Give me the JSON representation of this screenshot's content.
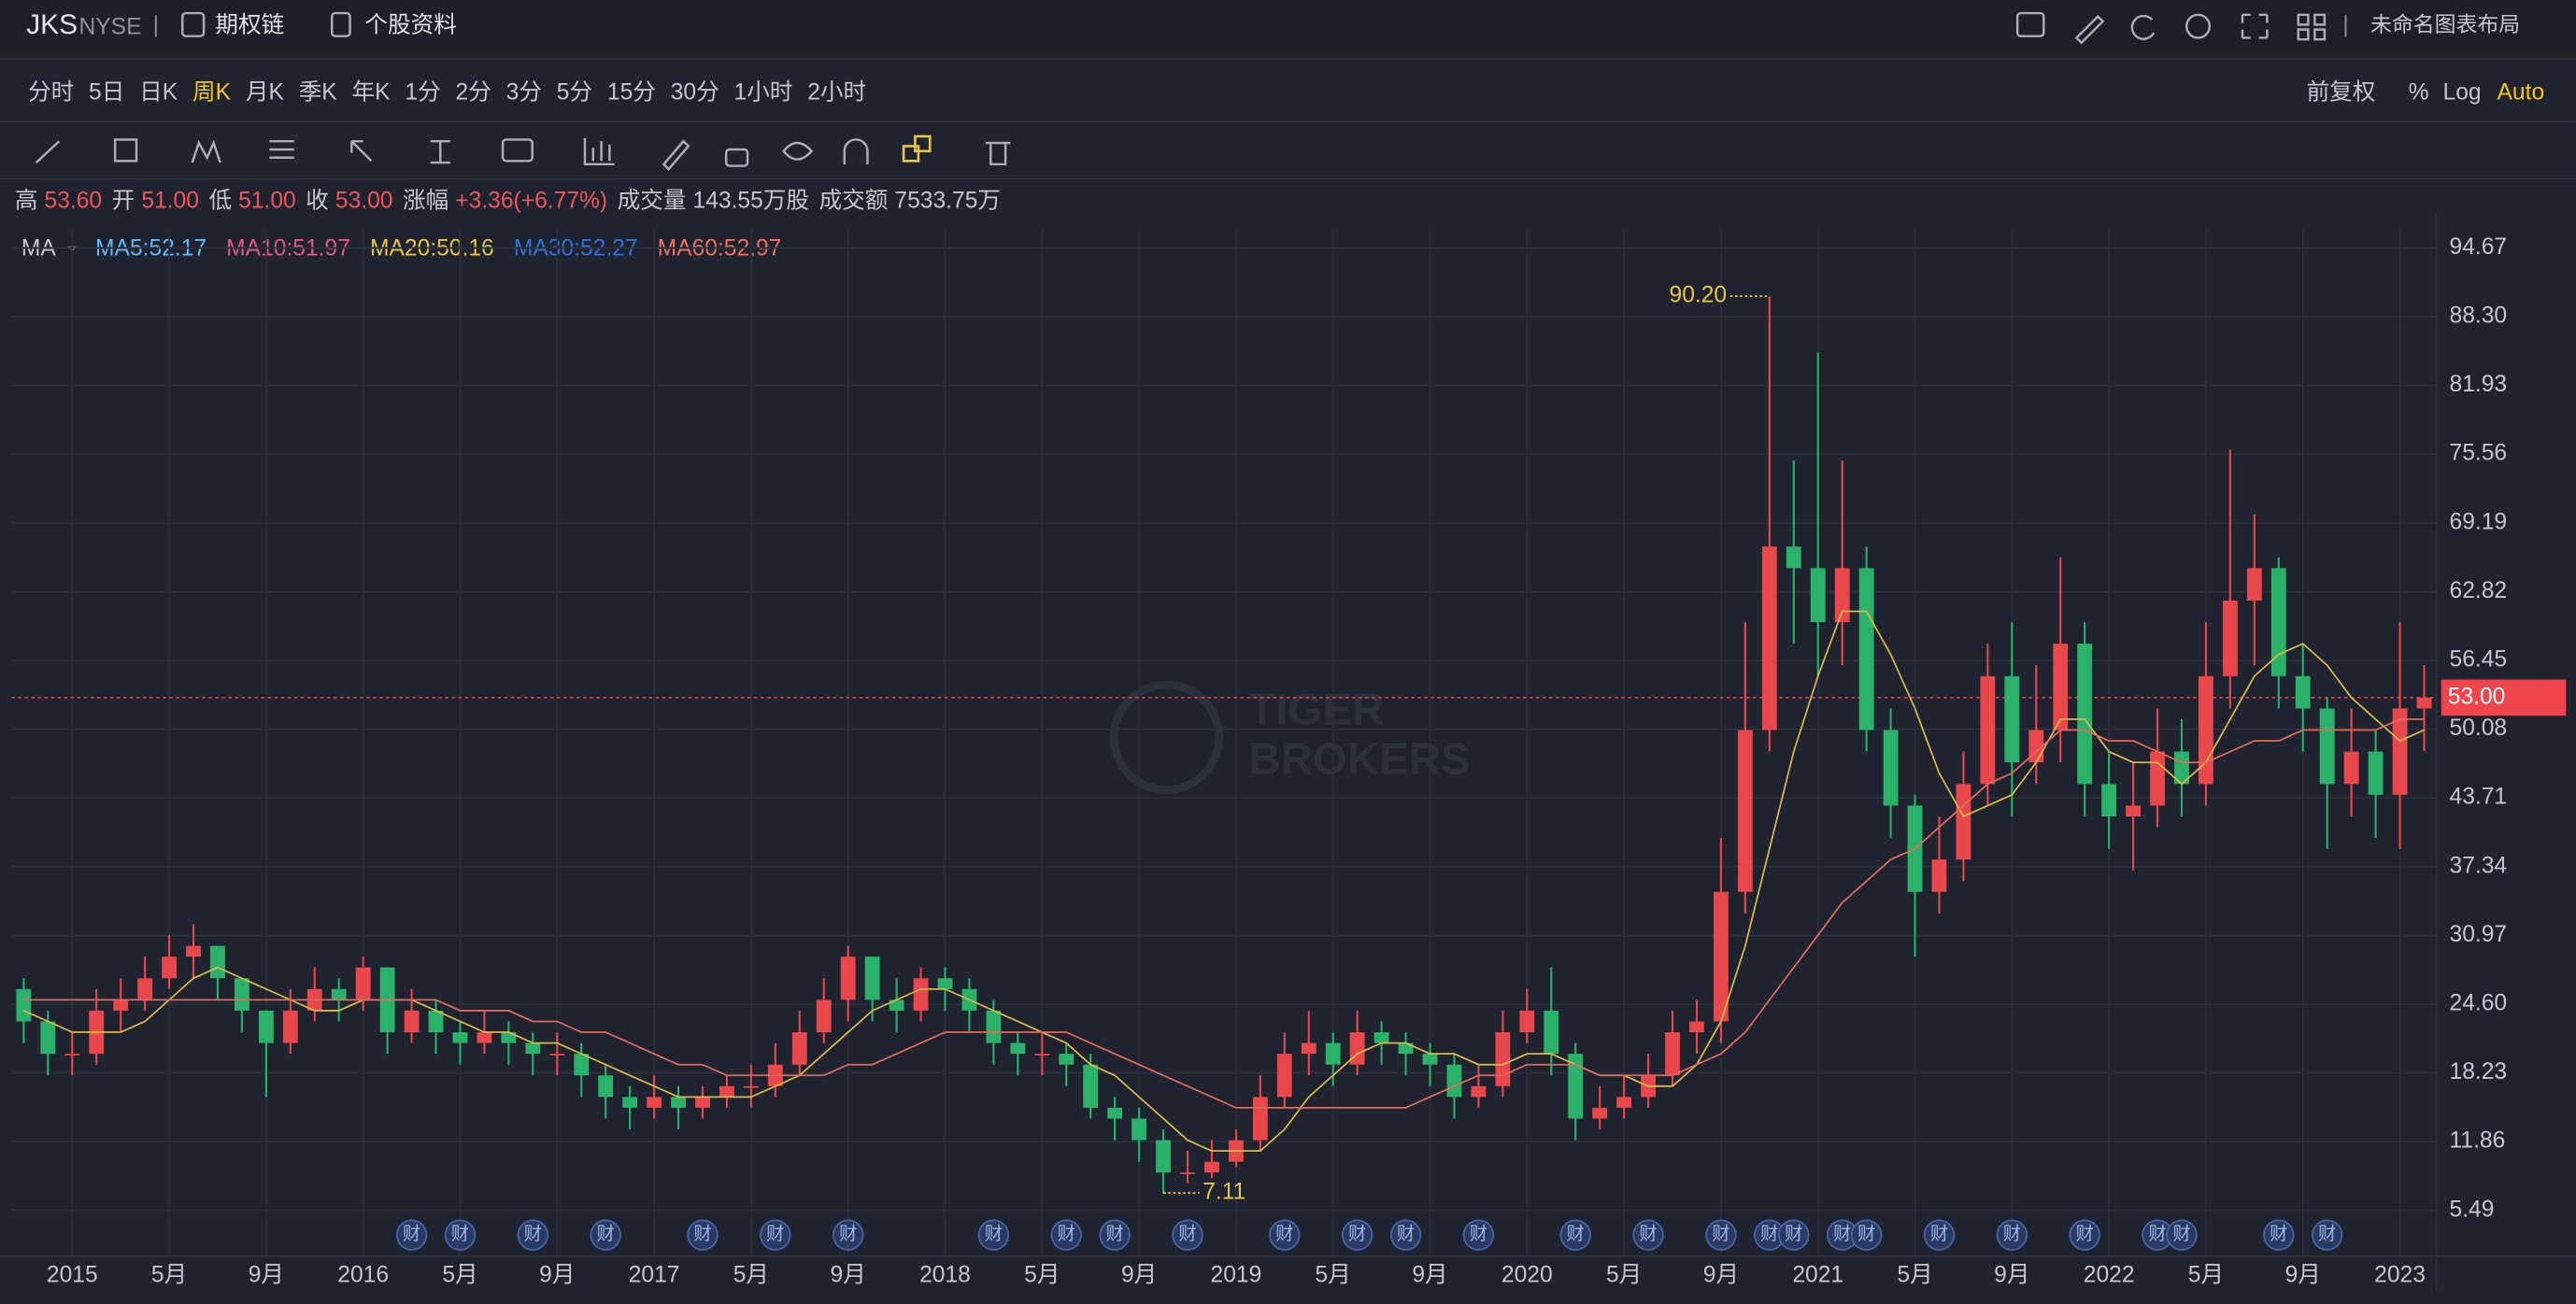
{
  "header": {
    "symbol": "JKS",
    "exchange": "NYSE",
    "links": [
      "期权链",
      "个股资料"
    ],
    "layout_name": "未命名图表布局"
  },
  "periods": [
    "分时",
    "5日",
    "日K",
    "周K",
    "月K",
    "季K",
    "年K",
    "1分",
    "2分",
    "3分",
    "5分",
    "15分",
    "30分",
    "1小时",
    "2小时"
  ],
  "active_period": 3,
  "adjust": [
    "前复权",
    "%",
    "Log",
    "Auto"
  ],
  "quote": [
    {
      "label": "高",
      "value": "53.60"
    },
    {
      "label": "开",
      "value": "51.00"
    },
    {
      "label": "低",
      "value": "51.00"
    },
    {
      "label": "收",
      "value": "53.00"
    },
    {
      "label": "涨幅",
      "value": "+3.36(+6.77%)"
    },
    {
      "label": "成交量",
      "value": "143.55万股"
    },
    {
      "label": "成交额",
      "value": "7533.75万"
    }
  ],
  "chart_data": {
    "type": "candlestick",
    "indicator": "MA",
    "legend": [
      {
        "text": "MA5:52.17",
        "color": "#62b8f2"
      },
      {
        "text": "MA10:51.97",
        "color": "#e2558f"
      },
      {
        "text": "MA20:50.16",
        "color": "#e8c547"
      },
      {
        "text": "MA30:52.27",
        "color": "#2f70dc"
      },
      {
        "text": "MA60:52.97",
        "color": "#f0705f"
      }
    ],
    "up_color": "#e8474c",
    "down_color": "#2bb26a",
    "x": [
      "2014-11",
      "2014-12",
      "2015-01",
      "2015-02",
      "2015-03",
      "2015-04",
      "2015-05",
      "2015-06",
      "2015-07",
      "2015-08",
      "2015-09",
      "2015-10",
      "2015-11",
      "2015-12",
      "2016-01",
      "2016-02",
      "2016-03",
      "2016-04",
      "2016-05",
      "2016-06",
      "2016-07",
      "2016-08",
      "2016-09",
      "2016-10",
      "2016-11",
      "2016-12",
      "2017-01",
      "2017-02",
      "2017-03",
      "2017-04",
      "2017-05",
      "2017-06",
      "2017-07",
      "2017-08",
      "2017-09",
      "2017-10",
      "2017-11",
      "2017-12",
      "2018-01",
      "2018-02",
      "2018-03",
      "2018-04",
      "2018-05",
      "2018-06",
      "2018-07",
      "2018-08",
      "2018-09",
      "2018-10",
      "2018-11",
      "2018-12",
      "2019-01",
      "2019-02",
      "2019-03",
      "2019-04",
      "2019-05",
      "2019-06",
      "2019-07",
      "2019-08",
      "2019-09",
      "2019-10",
      "2019-11",
      "2019-12",
      "2020-01",
      "2020-02",
      "2020-03",
      "2020-04",
      "2020-05",
      "2020-06",
      "2020-07",
      "2020-08",
      "2020-09",
      "2020-10",
      "2020-11",
      "2020-12",
      "2021-01",
      "2021-02",
      "2021-03",
      "2021-04",
      "2021-05",
      "2021-06",
      "2021-07",
      "2021-08",
      "2021-09",
      "2021-10",
      "2021-11",
      "2021-12",
      "2022-01",
      "2022-02",
      "2022-03",
      "2022-04",
      "2022-05",
      "2022-06",
      "2022-07",
      "2022-08",
      "2022-09",
      "2022-10",
      "2022-11",
      "2022-12",
      "2023-01",
      "2023-02"
    ],
    "open": [
      26,
      23,
      20,
      20,
      24,
      25,
      27,
      29,
      30,
      27,
      24,
      21,
      24,
      26,
      25,
      28,
      22,
      24,
      22,
      21,
      22,
      21,
      20,
      20,
      18,
      16,
      15,
      16,
      15,
      16,
      17,
      17,
      19,
      22,
      25,
      29,
      25,
      24,
      27,
      26,
      24,
      21,
      20,
      20,
      19,
      15,
      14,
      12,
      9,
      9,
      10,
      12,
      16,
      20,
      21,
      19,
      22,
      21,
      20,
      19,
      16,
      17,
      22,
      24,
      20,
      14,
      15,
      16,
      18,
      22,
      23,
      35,
      50,
      67,
      65,
      60,
      65,
      50,
      43,
      35,
      38,
      45,
      55,
      47,
      50,
      58,
      45,
      42,
      43,
      48,
      45,
      55,
      62,
      65,
      55,
      52,
      45,
      48,
      44,
      52
    ],
    "high": [
      27,
      24,
      22,
      26,
      27,
      29,
      31,
      32,
      30,
      27,
      24,
      26,
      28,
      27,
      29,
      28,
      26,
      25,
      23,
      24,
      23,
      22,
      22,
      21,
      19,
      17,
      18,
      17,
      17,
      18,
      19,
      21,
      24,
      27,
      30,
      29,
      27,
      28,
      28,
      27,
      25,
      22,
      22,
      21,
      20,
      16,
      15,
      13,
      11,
      12,
      13,
      18,
      22,
      24,
      22,
      24,
      23,
      22,
      21,
      20,
      19,
      24,
      26,
      28,
      21,
      17,
      18,
      20,
      24,
      25,
      40,
      60,
      90.2,
      75,
      85,
      75,
      67,
      52,
      44,
      42,
      48,
      58,
      60,
      56,
      66,
      60,
      48,
      47,
      52,
      51,
      60,
      76,
      70,
      66,
      58,
      53,
      52,
      50,
      60,
      56
    ],
    "low": [
      21,
      18,
      18,
      19,
      22,
      24,
      26,
      27,
      25,
      22,
      16,
      20,
      23,
      23,
      24,
      20,
      21,
      20,
      19,
      20,
      19,
      18,
      18,
      16,
      14,
      13,
      14,
      13,
      14,
      15,
      15,
      16,
      18,
      21,
      23,
      23,
      22,
      23,
      24,
      22,
      19,
      18,
      18,
      17,
      14,
      12,
      10,
      7.11,
      8,
      8.5,
      9.5,
      11,
      15,
      18,
      17,
      18,
      19,
      18,
      17,
      14,
      15,
      16,
      21,
      18,
      12,
      13,
      14,
      15,
      17,
      20,
      21,
      33,
      48,
      58,
      55,
      56,
      48,
      40,
      29,
      33,
      36,
      43,
      42,
      45,
      47,
      42,
      39,
      37,
      41,
      42,
      43,
      52,
      56,
      52,
      48,
      39,
      42,
      40,
      39,
      48
    ],
    "close": [
      23,
      20,
      20,
      24,
      25,
      27,
      29,
      30,
      27,
      24,
      21,
      24,
      26,
      25,
      28,
      22,
      24,
      22,
      21,
      22,
      21,
      20,
      20,
      18,
      16,
      15,
      16,
      15,
      16,
      17,
      17,
      19,
      22,
      25,
      29,
      25,
      24,
      27,
      26,
      24,
      21,
      20,
      20,
      19,
      15,
      14,
      12,
      9,
      9,
      10,
      12,
      16,
      20,
      21,
      19,
      22,
      21,
      20,
      19,
      16,
      17,
      22,
      24,
      20,
      14,
      15,
      16,
      18,
      22,
      23,
      35,
      50,
      67,
      65,
      60,
      65,
      50,
      43,
      35,
      38,
      45,
      55,
      47,
      50,
      58,
      45,
      42,
      43,
      48,
      45,
      55,
      62,
      65,
      55,
      52,
      45,
      48,
      44,
      52,
      53
    ],
    "series": [
      {
        "color": "#d9b84a",
        "values": [
          24,
          23,
          22,
          22,
          22,
          23,
          25,
          27,
          28,
          27,
          26,
          25,
          24,
          24,
          25,
          25,
          25,
          24,
          23,
          22,
          22,
          21,
          21,
          20,
          19,
          18,
          17,
          16,
          16,
          16,
          16,
          17,
          18,
          20,
          22,
          24,
          25,
          26,
          26,
          25,
          24,
          23,
          22,
          21,
          19,
          18,
          16,
          14,
          12,
          11,
          11,
          11,
          13,
          16,
          18,
          20,
          21,
          21,
          20,
          20,
          19,
          19,
          20,
          20,
          19,
          18,
          18,
          17,
          17,
          19,
          23,
          30,
          39,
          48,
          55,
          61,
          61,
          57,
          52,
          46,
          42,
          43,
          44,
          47,
          51,
          51,
          48,
          47,
          47,
          45,
          47,
          51,
          55,
          57,
          58,
          56,
          53,
          51,
          49,
          50
        ]
      },
      {
        "color": "#e06a5a",
        "values": [
          25,
          25,
          25,
          25,
          25,
          25,
          25,
          25,
          25,
          25,
          25,
          25,
          25,
          25,
          25,
          25,
          25,
          25,
          24,
          24,
          24,
          23,
          23,
          22,
          22,
          21,
          20,
          19,
          19,
          18,
          18,
          18,
          18,
          18,
          19,
          19,
          20,
          21,
          22,
          22,
          22,
          22,
          22,
          22,
          21,
          20,
          19,
          18,
          17,
          16,
          15,
          15,
          15,
          15,
          15,
          15,
          15,
          15,
          16,
          17,
          18,
          18,
          19,
          19,
          19,
          18,
          18,
          18,
          18,
          19,
          20,
          22,
          25,
          28,
          31,
          34,
          36,
          38,
          39,
          41,
          43,
          45,
          46,
          48,
          50,
          50,
          49,
          49,
          48,
          47,
          47,
          48,
          49,
          49,
          50,
          50,
          50,
          50,
          51,
          51
        ]
      }
    ],
    "ylim": [
      1.23,
      96.34
    ],
    "yticks": [
      94.67,
      {
        "value": 88.3,
        "label": "88.30"
      },
      81.93,
      75.56,
      69.19,
      62.82,
      56.45,
      50.08,
      43.71,
      37.34,
      30.97,
      {
        "value": 24.6,
        "label": "24.60"
      },
      18.23,
      11.86,
      5.49
    ],
    "xticks": [
      {
        "value": "2015-01",
        "label": "2015"
      },
      {
        "value": "2015-05",
        "label": "5月"
      },
      {
        "value": "2015-09",
        "label": "9月"
      },
      {
        "value": "2016-01",
        "label": "2016"
      },
      {
        "value": "2016-05",
        "label": "5月"
      },
      {
        "value": "2016-09",
        "label": "9月"
      },
      {
        "value": "2017-01",
        "label": "2017"
      },
      {
        "value": "2017-05",
        "label": "5月"
      },
      {
        "value": "2017-09",
        "label": "9月"
      },
      {
        "value": "2018-01",
        "label": "2018"
      },
      {
        "value": "2018-05",
        "label": "5月"
      },
      {
        "value": "2018-09",
        "label": "9月"
      },
      {
        "value": "2019-01",
        "label": "2019"
      },
      {
        "value": "2019-05",
        "label": "5月"
      },
      {
        "value": "2019-09",
        "label": "9月"
      },
      {
        "value": "2020-01",
        "label": "2020"
      },
      {
        "value": "2020-05",
        "label": "5月"
      },
      {
        "value": "2020-09",
        "label": "9月"
      },
      {
        "value": "2021-01",
        "label": "2021"
      },
      {
        "value": "2021-05",
        "label": "5月"
      },
      {
        "value": "2021-09",
        "label": "9月"
      },
      {
        "value": "2022-01",
        "label": "2022"
      },
      {
        "value": "2022-05",
        "label": "5月"
      },
      {
        "value": "2022-09",
        "label": "9月"
      },
      {
        "value": "2023-01",
        "label": "2023"
      }
    ],
    "grid": true,
    "max_label": {
      "x": "2020-11",
      "value": 90.2,
      "label": "90.20"
    },
    "min_label": {
      "x": "2018-10",
      "value": 7.11
    },
    "last_price": {
      "value": 53,
      "label": "53.00",
      "color": "#f0454c"
    },
    "earnings": {
      "label": "财",
      "x": [
        "2016-03",
        "2016-05",
        "2016-08",
        "2016-11",
        "2017-03",
        "2017-06",
        "2017-09",
        "2018-03",
        "2018-06",
        "2018-08",
        "2018-11",
        "2019-03",
        "2019-06",
        "2019-08",
        "2019-11",
        "2020-03",
        "2020-06",
        "2020-09",
        "2020-11",
        "2020-12",
        "2021-02",
        "2021-03",
        "2021-06",
        "2021-09",
        "2021-12",
        "2022-03",
        "2022-04",
        "2022-08",
        "2022-10"
      ]
    },
    "watermark": [
      "TIGER",
      "BROKERS"
    ]
  }
}
